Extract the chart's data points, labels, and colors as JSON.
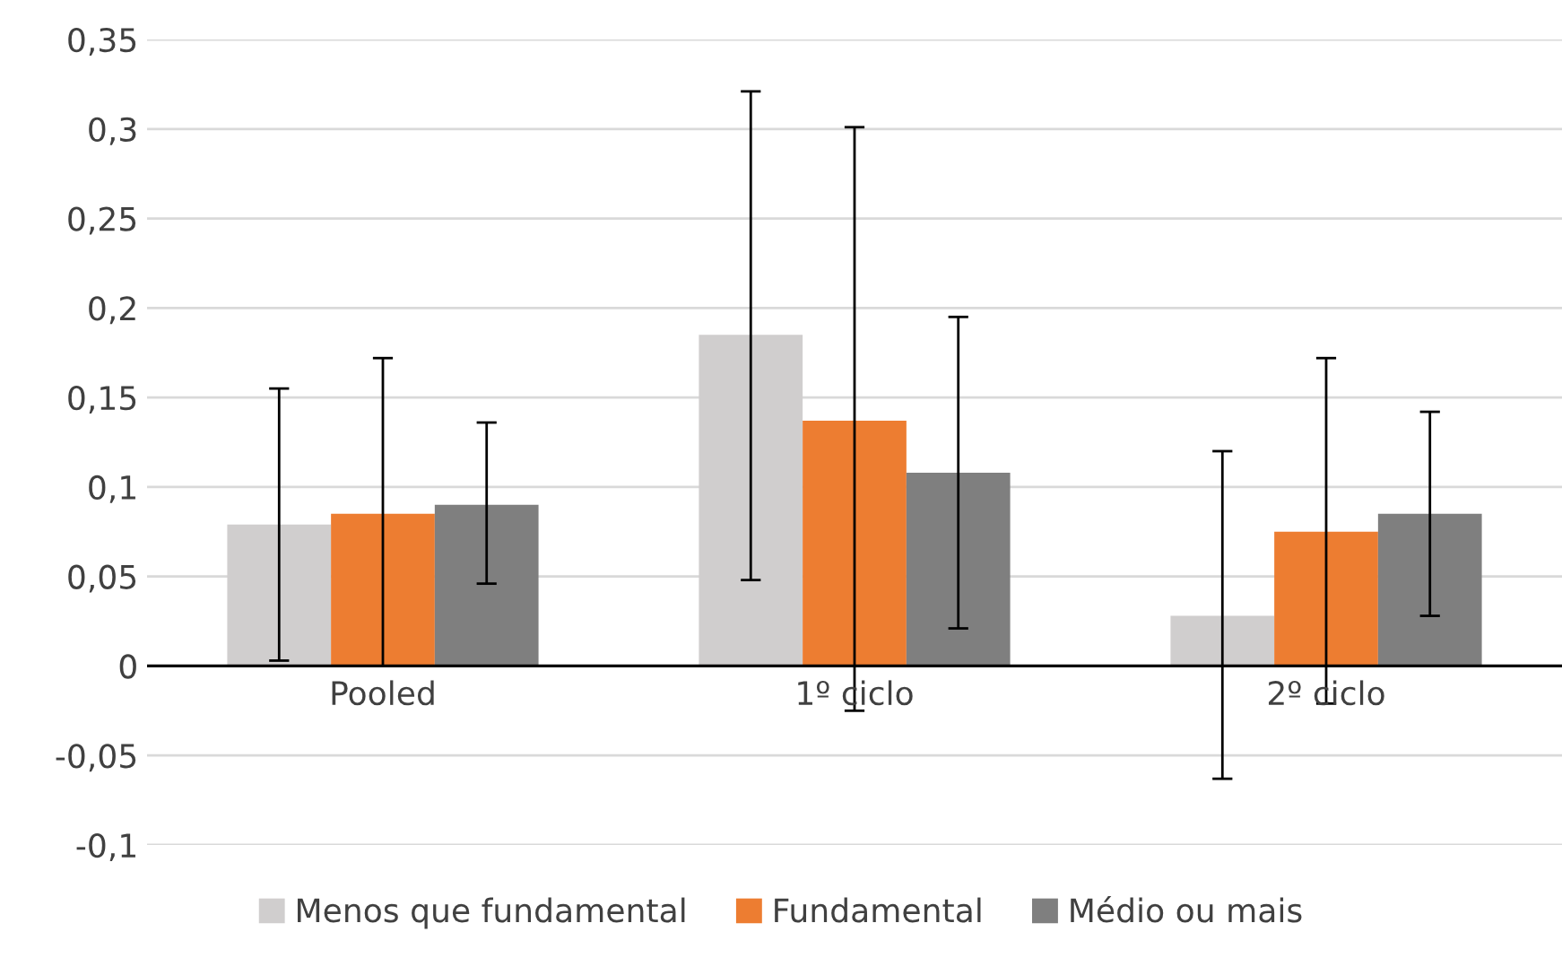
{
  "chart_data": {
    "type": "bar",
    "categories": [
      "Pooled",
      "1º ciclo",
      "2º ciclo"
    ],
    "series": [
      {
        "name": "Menos que fundamental",
        "color": "#d0cece",
        "values": [
          0.079,
          0.185,
          0.028
        ],
        "errors": [
          [
            0.003,
            0.155
          ],
          [
            0.048,
            0.321
          ],
          [
            -0.063,
            0.12
          ]
        ]
      },
      {
        "name": "Fundamental",
        "color": "#ed7d31",
        "values": [
          0.085,
          0.137,
          0.075
        ],
        "errors": [
          [
            0.0,
            0.172
          ],
          [
            -0.025,
            0.301
          ],
          [
            -0.021,
            0.172
          ]
        ]
      },
      {
        "name": "Médio ou mais",
        "color": "#7f7f7f",
        "values": [
          0.09,
          0.108,
          0.085
        ],
        "errors": [
          [
            0.046,
            0.136
          ],
          [
            0.021,
            0.195
          ],
          [
            0.028,
            0.142
          ]
        ]
      }
    ],
    "ylim": [
      -0.1,
      0.35
    ],
    "yticks": [
      {
        "value": -0.1,
        "label": "-0,1"
      },
      {
        "value": -0.05,
        "label": "-0,05"
      },
      {
        "value": 0,
        "label": "0"
      },
      {
        "value": 0.05,
        "label": "0,05"
      },
      {
        "value": 0.1,
        "label": "0,1"
      },
      {
        "value": 0.15,
        "label": "0,15"
      },
      {
        "value": 0.2,
        "label": "0,2"
      },
      {
        "value": 0.25,
        "label": "0,25"
      },
      {
        "value": 0.3,
        "label": "0,3"
      },
      {
        "value": 0.35,
        "label": "0,35"
      }
    ],
    "grid": "y",
    "legend": "bottom"
  }
}
